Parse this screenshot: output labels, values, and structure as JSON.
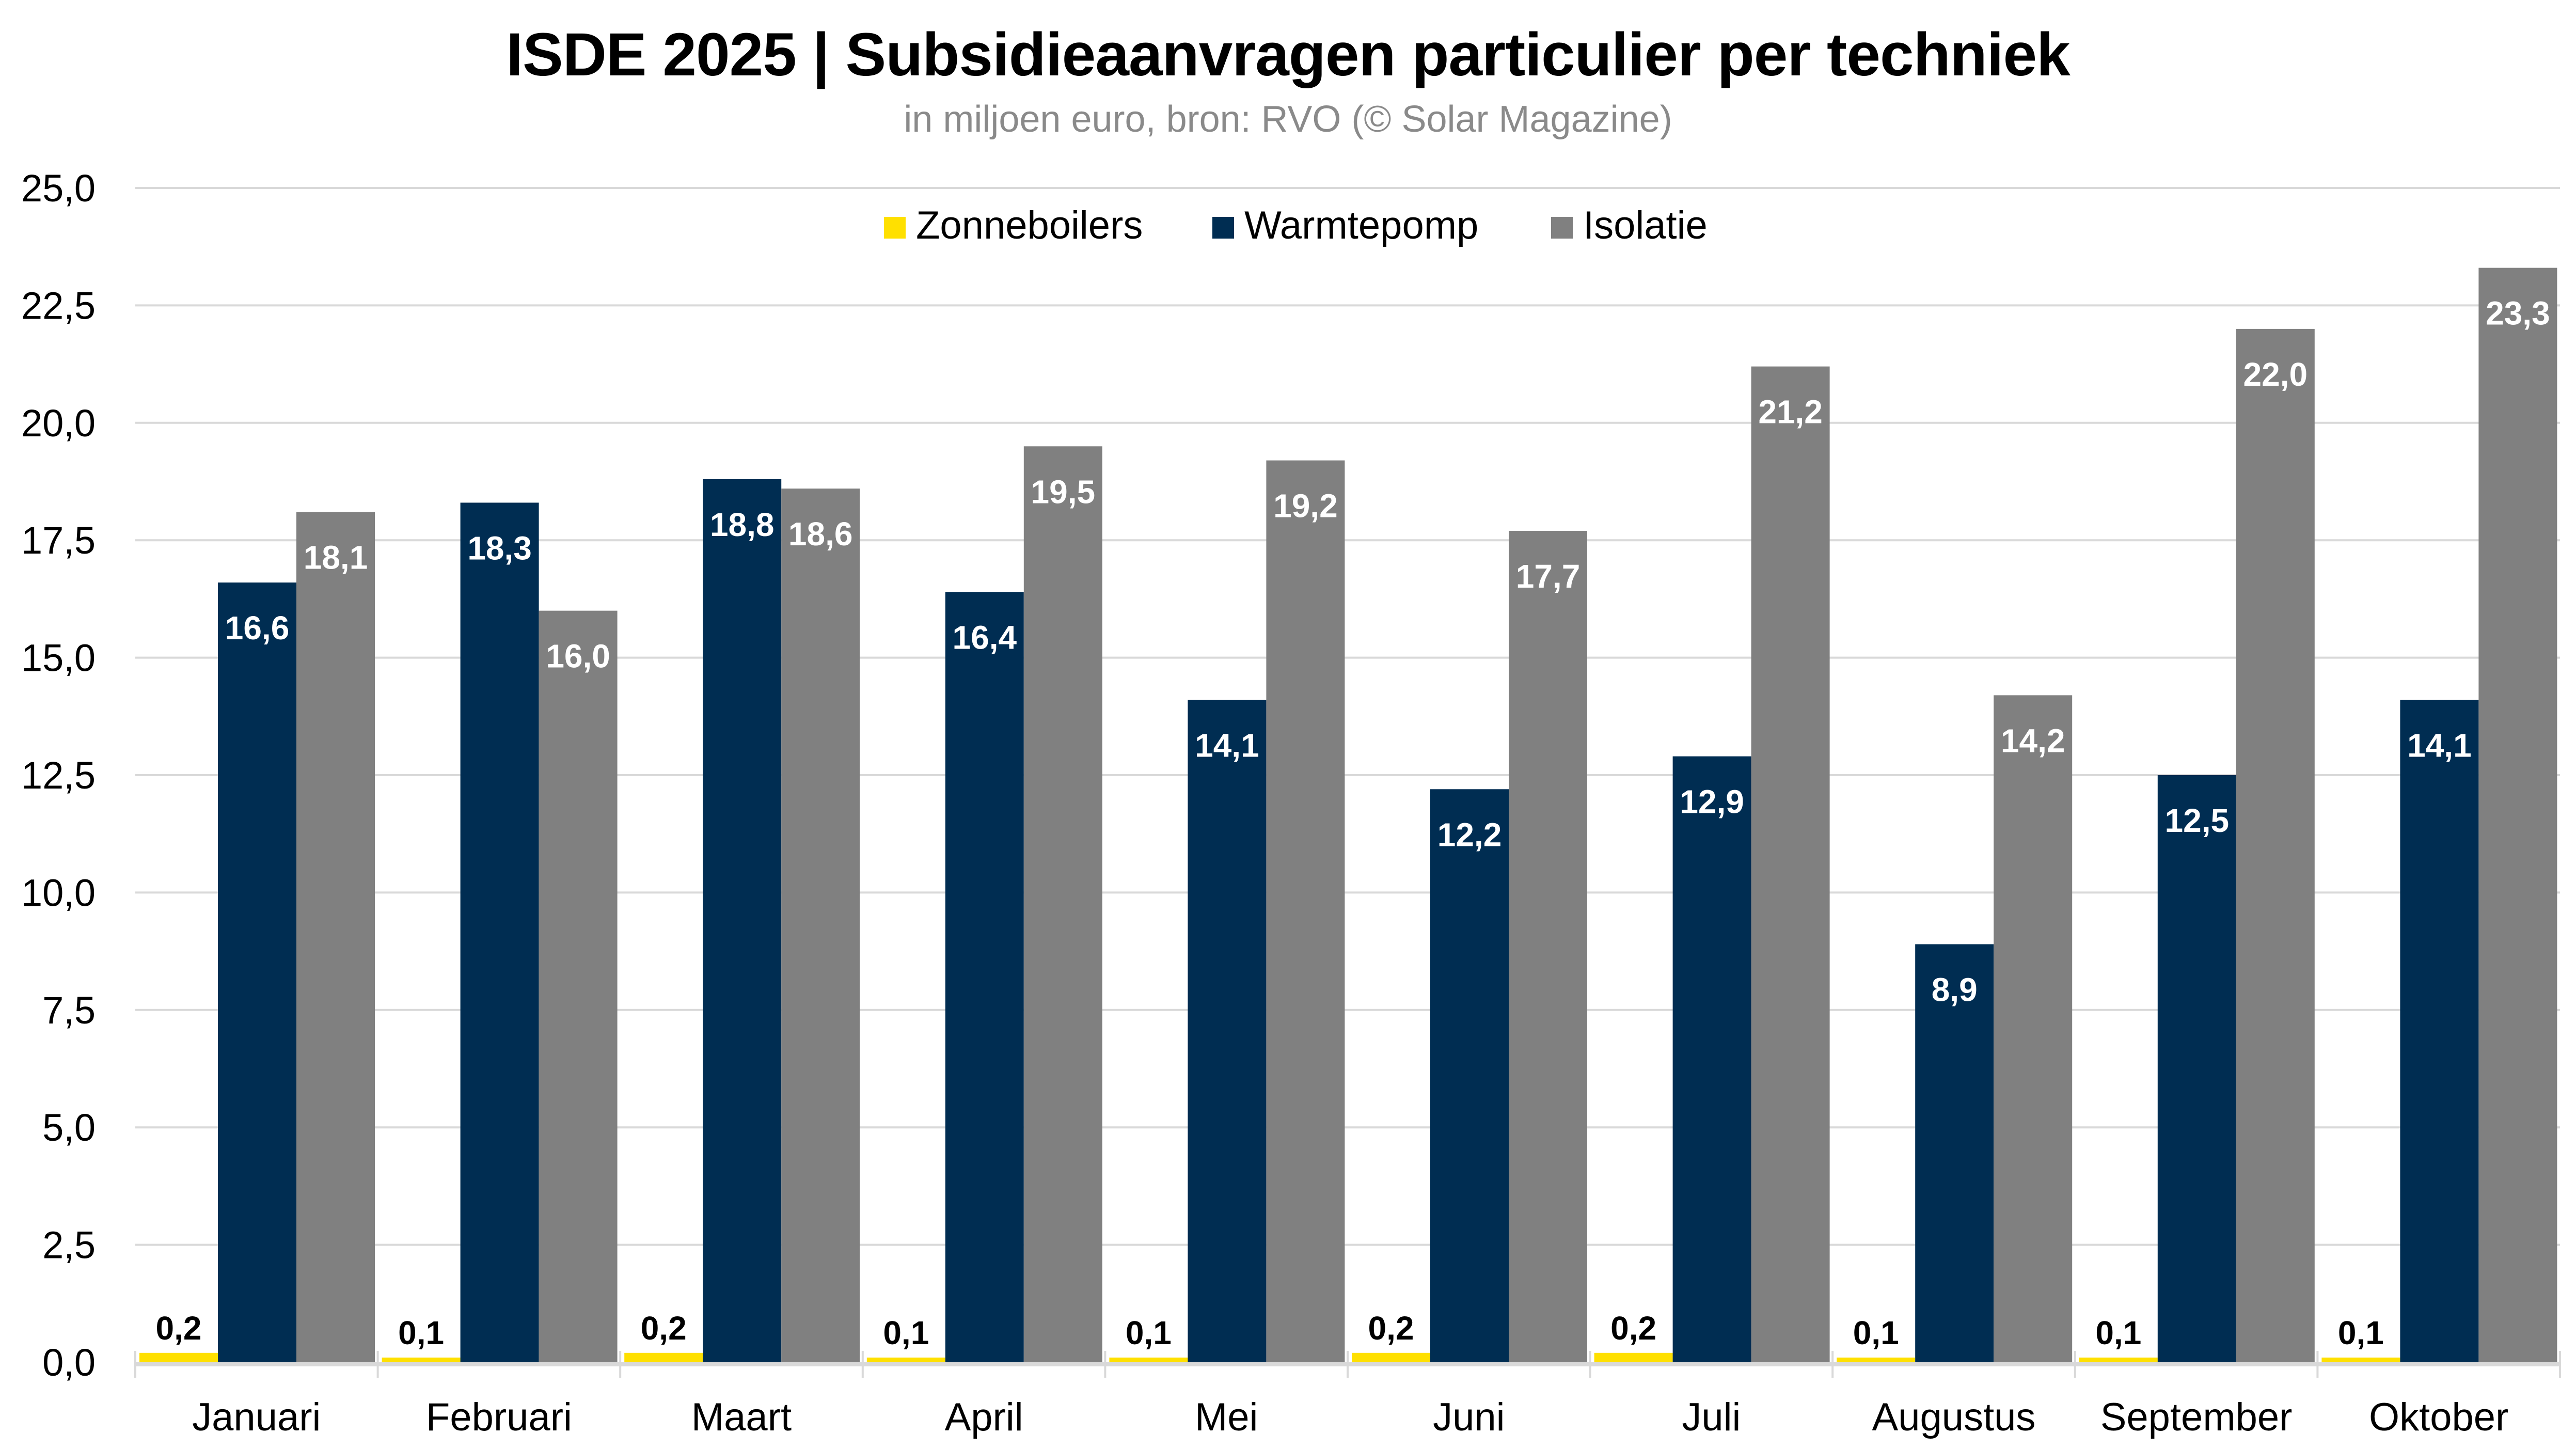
{
  "chart_data": {
    "type": "bar",
    "title": "ISDE 2025 | Subsidieaanvragen particulier per techniek",
    "subtitle": "in miljoen euro, bron: RVO (© Solar Magazine)",
    "xlabel": "",
    "ylabel": "",
    "ylim": [
      0,
      25
    ],
    "yticks": [
      "0,0",
      "2,5",
      "5,0",
      "7,5",
      "10,0",
      "12,5",
      "15,0",
      "17,5",
      "20,0",
      "22,5",
      "25,0"
    ],
    "ytick_values": [
      0,
      2.5,
      5,
      7.5,
      10,
      12.5,
      15,
      17.5,
      20,
      22.5,
      25
    ],
    "grid": true,
    "legend_position": "top-center",
    "categories": [
      "Januari",
      "Februari",
      "Maart",
      "April",
      "Mei",
      "Juni",
      "Juli",
      "Augustus",
      "September",
      "Oktober"
    ],
    "series": [
      {
        "name": "Zonneboilers",
        "color": "#FFE000",
        "label_color": "#000000",
        "values": [
          0.2,
          0.1,
          0.2,
          0.1,
          0.1,
          0.2,
          0.2,
          0.1,
          0.1,
          0.1
        ],
        "labels": [
          "0,2",
          "0,1",
          "0,2",
          "0,1",
          "0,1",
          "0,2",
          "0,2",
          "0,1",
          "0,1",
          "0,1"
        ]
      },
      {
        "name": "Warmtepomp",
        "color": "#002D52",
        "label_color": "#FFFFFF",
        "values": [
          16.6,
          18.3,
          18.8,
          16.4,
          14.1,
          12.2,
          12.9,
          8.9,
          12.5,
          14.1
        ],
        "labels": [
          "16,6",
          "18,3",
          "18,8",
          "16,4",
          "14,1",
          "12,2",
          "12,9",
          "8,9",
          "12,5",
          "14,1"
        ]
      },
      {
        "name": "Isolatie",
        "color": "#808080",
        "label_color": "#FFFFFF",
        "values": [
          18.1,
          16.0,
          18.6,
          19.5,
          19.2,
          17.7,
          21.2,
          14.2,
          22.0,
          23.3
        ],
        "labels": [
          "18,1",
          "16,0",
          "18,6",
          "19,5",
          "19,2",
          "17,7",
          "21,2",
          "14,2",
          "22,0",
          "23,3"
        ]
      }
    ]
  },
  "colors": {
    "gridline": "#D9D9D9",
    "axis": "#D9D9D9"
  }
}
